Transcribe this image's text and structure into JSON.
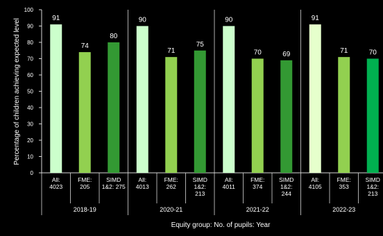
{
  "chart_data": {
    "type": "bar",
    "title": "",
    "xlabel": "Equity group: No. of pupils: Year",
    "ylabel": "Percentage of children achieving expected level",
    "ylim": [
      0,
      100
    ],
    "yticks": [
      0,
      10,
      20,
      30,
      40,
      50,
      60,
      70,
      80,
      90,
      100
    ],
    "grid": false,
    "legend": "none",
    "groups": [
      {
        "year": "2018-19",
        "bars": [
          {
            "label": [
              "All:",
              "4023"
            ],
            "value": 91,
            "color": "#ccffcc"
          },
          {
            "label": [
              "FME:",
              "205"
            ],
            "value": 74,
            "color": "#92d050"
          },
          {
            "label": [
              "SIMD",
              "1&2: 275"
            ],
            "value": 80,
            "color": "#339933"
          }
        ]
      },
      {
        "year": "2020-21",
        "bars": [
          {
            "label": [
              "All:",
              "4013"
            ],
            "value": 90,
            "color": "#ccffcc"
          },
          {
            "label": [
              "FME:",
              "262"
            ],
            "value": 71,
            "color": "#92d050"
          },
          {
            "label": [
              "SIMD",
              "1&2:",
              "213"
            ],
            "value": 75,
            "color": "#339933"
          }
        ]
      },
      {
        "year": "2021-22",
        "bars": [
          {
            "label": [
              "All:",
              "4011"
            ],
            "value": 90,
            "color": "#ccffcc"
          },
          {
            "label": [
              "FME:",
              "374"
            ],
            "value": 70,
            "color": "#92d050"
          },
          {
            "label": [
              "SIMD",
              "1&2:",
              "244"
            ],
            "value": 69,
            "color": "#339933"
          }
        ]
      },
      {
        "year": "2022-23",
        "bars": [
          {
            "label": [
              "All:",
              "4105"
            ],
            "value": 91,
            "color": "#e6ffcc"
          },
          {
            "label": [
              "FME:",
              "353"
            ],
            "value": 71,
            "color": "#92d050"
          },
          {
            "label": [
              "SIMD",
              "1&2:",
              "213"
            ],
            "value": 70,
            "color": "#00b050"
          }
        ]
      }
    ]
  }
}
